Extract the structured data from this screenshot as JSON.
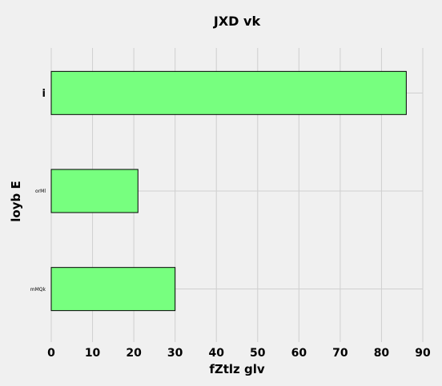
{
  "chart_data": {
    "type": "bar",
    "orientation": "horizontal",
    "title": "JXD vk",
    "xlabel": "fZtlz glv",
    "ylabel": "loyb E",
    "categories": [
      "i",
      "orMl",
      "mMQk"
    ],
    "values": [
      86,
      21,
      30
    ],
    "xlim": [
      0,
      90
    ],
    "xticks": [
      0,
      10,
      20,
      30,
      40,
      50,
      60,
      70,
      80,
      90
    ],
    "grid": true,
    "bar_color": "#77ff7f",
    "background": "#f0f0f0"
  }
}
